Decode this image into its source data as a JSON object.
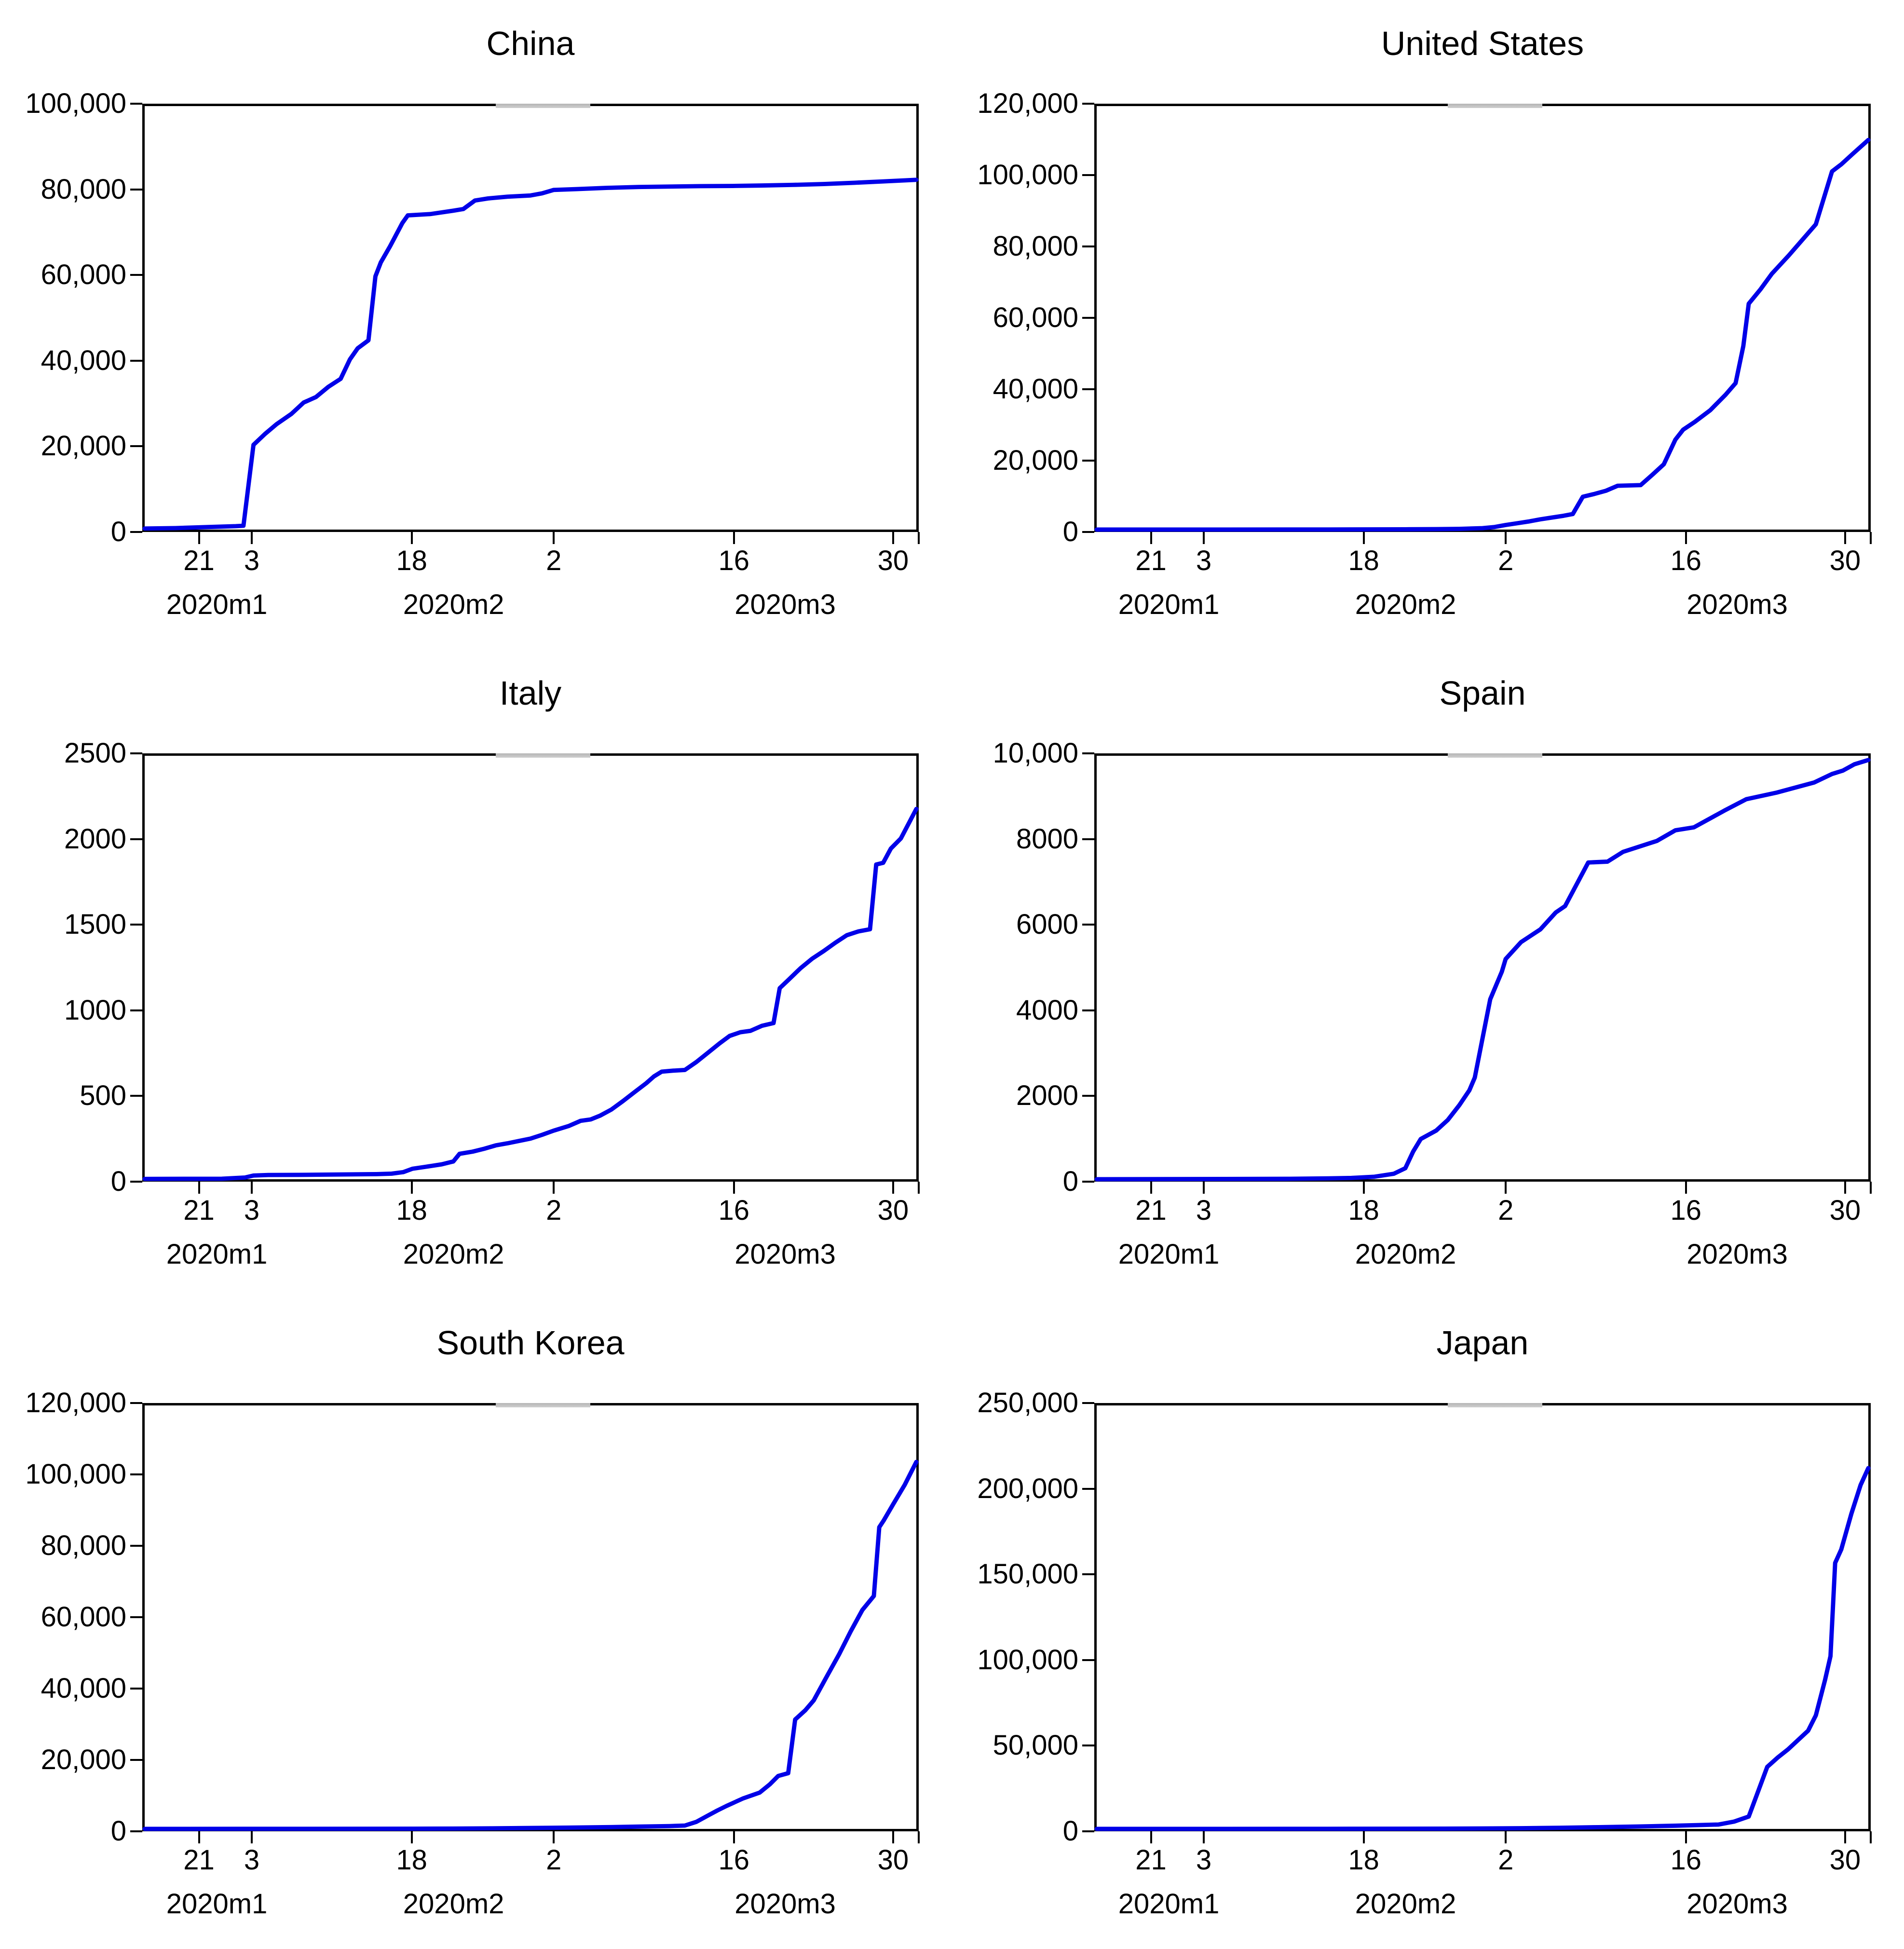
{
  "figure": {
    "background": "#ffffff",
    "line_color": "#0000e8",
    "axis_color": "#000000",
    "artifact_color": "#b5b5b5",
    "grid": false,
    "legend": "none"
  },
  "x_axis": {
    "description": "time axis from mid-January 2020 to early April 2020; tick labels are days of month, f = fraction of plot width",
    "ticks": [
      {
        "f": 0.073,
        "label": "21"
      },
      {
        "f": 0.141,
        "label": "3"
      },
      {
        "f": 0.347,
        "label": "18"
      },
      {
        "f": 0.53,
        "label": "2"
      },
      {
        "f": 0.762,
        "label": "16"
      },
      {
        "f": 0.967,
        "label": "30"
      },
      {
        "f": 1.0,
        "label": ""
      }
    ],
    "month_labels": [
      {
        "f": 0.096,
        "label": "2020m1"
      },
      {
        "f": 0.401,
        "label": "2020m2"
      },
      {
        "f": 0.828,
        "label": "2020m3"
      }
    ]
  },
  "chart_data": [
    {
      "type": "line",
      "title": "China",
      "ylim": [
        0,
        100000
      ],
      "yticks": [
        {
          "v": 0,
          "label": "0"
        },
        {
          "v": 20000,
          "label": "20,000"
        },
        {
          "v": 40000,
          "label": "40,000"
        },
        {
          "v": 60000,
          "label": "60,000"
        },
        {
          "v": 80000,
          "label": "80,000"
        },
        {
          "v": 100000,
          "label": "100,000"
        }
      ],
      "points": [
        [
          0,
          250
        ],
        [
          0.04,
          350
        ],
        [
          0.073,
          550
        ],
        [
          0.1,
          700
        ],
        [
          0.118,
          800
        ],
        [
          0.128,
          900
        ],
        [
          0.141,
          20000
        ],
        [
          0.156,
          22600
        ],
        [
          0.171,
          24900
        ],
        [
          0.19,
          27300
        ],
        [
          0.206,
          30000
        ],
        [
          0.222,
          31300
        ],
        [
          0.238,
          33700
        ],
        [
          0.254,
          35600
        ],
        [
          0.266,
          40200
        ],
        [
          0.276,
          42800
        ],
        [
          0.29,
          44700
        ],
        [
          0.299,
          59800
        ],
        [
          0.306,
          63100
        ],
        [
          0.318,
          66900
        ],
        [
          0.334,
          72400
        ],
        [
          0.341,
          74200
        ],
        [
          0.37,
          74500
        ],
        [
          0.4,
          75300
        ],
        [
          0.413,
          75700
        ],
        [
          0.428,
          77700
        ],
        [
          0.445,
          78200
        ],
        [
          0.47,
          78600
        ],
        [
          0.5,
          78900
        ],
        [
          0.515,
          79400
        ],
        [
          0.53,
          80200
        ],
        [
          0.56,
          80400
        ],
        [
          0.6,
          80700
        ],
        [
          0.64,
          80900
        ],
        [
          0.68,
          81000
        ],
        [
          0.72,
          81100
        ],
        [
          0.762,
          81150
        ],
        [
          0.8,
          81250
        ],
        [
          0.84,
          81400
        ],
        [
          0.88,
          81600
        ],
        [
          0.92,
          81900
        ],
        [
          0.955,
          82200
        ],
        [
          1.0,
          82600
        ]
      ]
    },
    {
      "type": "line",
      "title": "United States",
      "ylim": [
        0,
        120000
      ],
      "yticks": [
        {
          "v": 0,
          "label": "0"
        },
        {
          "v": 20000,
          "label": "20,000"
        },
        {
          "v": 40000,
          "label": "40,000"
        },
        {
          "v": 60000,
          "label": "60,000"
        },
        {
          "v": 80000,
          "label": "80,000"
        },
        {
          "v": 100000,
          "label": "100,000"
        },
        {
          "v": 120000,
          "label": "120,000"
        }
      ],
      "points": [
        [
          0,
          0
        ],
        [
          0.3,
          30
        ],
        [
          0.4,
          80
        ],
        [
          0.44,
          120
        ],
        [
          0.47,
          200
        ],
        [
          0.5,
          400
        ],
        [
          0.515,
          700
        ],
        [
          0.53,
          1300
        ],
        [
          0.545,
          1800
        ],
        [
          0.56,
          2300
        ],
        [
          0.575,
          2900
        ],
        [
          0.59,
          3400
        ],
        [
          0.605,
          3900
        ],
        [
          0.617,
          4400
        ],
        [
          0.63,
          9300
        ],
        [
          0.645,
          10100
        ],
        [
          0.66,
          11000
        ],
        [
          0.675,
          12400
        ],
        [
          0.705,
          12600
        ],
        [
          0.72,
          15500
        ],
        [
          0.735,
          18500
        ],
        [
          0.75,
          25500
        ],
        [
          0.76,
          28300
        ],
        [
          0.775,
          30500
        ],
        [
          0.795,
          33800
        ],
        [
          0.815,
          38200
        ],
        [
          0.828,
          41500
        ],
        [
          0.838,
          52000
        ],
        [
          0.845,
          64000
        ],
        [
          0.86,
          68000
        ],
        [
          0.875,
          72500
        ],
        [
          0.897,
          77700
        ],
        [
          0.932,
          86500
        ],
        [
          0.953,
          101500
        ],
        [
          0.965,
          103500
        ],
        [
          0.98,
          106500
        ],
        [
          1.0,
          110400
        ]
      ]
    },
    {
      "type": "line",
      "title": "Italy",
      "ylim": [
        0,
        2500
      ],
      "yticks": [
        {
          "v": 0,
          "label": "0"
        },
        {
          "v": 500,
          "label": "500"
        },
        {
          "v": 1000,
          "label": "1000"
        },
        {
          "v": 1500,
          "label": "1500"
        },
        {
          "v": 2000,
          "label": "2000"
        },
        {
          "v": 2500,
          "label": "2500"
        }
      ],
      "points": [
        [
          0,
          2
        ],
        [
          0.1,
          3
        ],
        [
          0.13,
          10
        ],
        [
          0.141,
          22
        ],
        [
          0.16,
          25
        ],
        [
          0.2,
          26
        ],
        [
          0.25,
          28
        ],
        [
          0.3,
          30
        ],
        [
          0.32,
          33
        ],
        [
          0.335,
          42
        ],
        [
          0.347,
          62
        ],
        [
          0.365,
          74
        ],
        [
          0.385,
          88
        ],
        [
          0.4,
          105
        ],
        [
          0.408,
          150
        ],
        [
          0.425,
          163
        ],
        [
          0.44,
          180
        ],
        [
          0.455,
          200
        ],
        [
          0.47,
          212
        ],
        [
          0.485,
          226
        ],
        [
          0.5,
          240
        ],
        [
          0.515,
          262
        ],
        [
          0.53,
          287
        ],
        [
          0.55,
          315
        ],
        [
          0.565,
          345
        ],
        [
          0.578,
          353
        ],
        [
          0.59,
          375
        ],
        [
          0.605,
          412
        ],
        [
          0.62,
          462
        ],
        [
          0.635,
          515
        ],
        [
          0.65,
          567
        ],
        [
          0.66,
          607
        ],
        [
          0.67,
          635
        ],
        [
          0.685,
          641
        ],
        [
          0.7,
          645
        ],
        [
          0.715,
          692
        ],
        [
          0.73,
          747
        ],
        [
          0.745,
          802
        ],
        [
          0.758,
          846
        ],
        [
          0.772,
          868
        ],
        [
          0.785,
          876
        ],
        [
          0.8,
          906
        ],
        [
          0.815,
          922
        ],
        [
          0.823,
          1128
        ],
        [
          0.835,
          1180
        ],
        [
          0.85,
          1246
        ],
        [
          0.865,
          1302
        ],
        [
          0.88,
          1347
        ],
        [
          0.895,
          1396
        ],
        [
          0.91,
          1441
        ],
        [
          0.925,
          1463
        ],
        [
          0.94,
          1476
        ],
        [
          0.948,
          1858
        ],
        [
          0.957,
          1868
        ],
        [
          0.967,
          1952
        ],
        [
          0.98,
          2012
        ],
        [
          1.0,
          2186
        ]
      ]
    },
    {
      "type": "line",
      "title": "Spain",
      "ylim": [
        0,
        10000
      ],
      "yticks": [
        {
          "v": 0,
          "label": "0"
        },
        {
          "v": 2000,
          "label": "2000"
        },
        {
          "v": 4000,
          "label": "4000"
        },
        {
          "v": 6000,
          "label": "6000"
        },
        {
          "v": 8000,
          "label": "8000"
        },
        {
          "v": 10000,
          "label": "10,000"
        }
      ],
      "points": [
        [
          0,
          0
        ],
        [
          0.25,
          10
        ],
        [
          0.3,
          20
        ],
        [
          0.33,
          30
        ],
        [
          0.36,
          60
        ],
        [
          0.385,
          130
        ],
        [
          0.4,
          260
        ],
        [
          0.41,
          650
        ],
        [
          0.42,
          950
        ],
        [
          0.44,
          1150
        ],
        [
          0.455,
          1400
        ],
        [
          0.47,
          1750
        ],
        [
          0.483,
          2100
        ],
        [
          0.49,
          2400
        ],
        [
          0.51,
          4250
        ],
        [
          0.525,
          4900
        ],
        [
          0.53,
          5200
        ],
        [
          0.55,
          5600
        ],
        [
          0.575,
          5900
        ],
        [
          0.595,
          6300
        ],
        [
          0.607,
          6450
        ],
        [
          0.637,
          7480
        ],
        [
          0.662,
          7500
        ],
        [
          0.682,
          7730
        ],
        [
          0.726,
          7990
        ],
        [
          0.75,
          8240
        ],
        [
          0.774,
          8310
        ],
        [
          0.813,
          8700
        ],
        [
          0.842,
          8975
        ],
        [
          0.881,
          9130
        ],
        [
          0.93,
          9370
        ],
        [
          0.953,
          9570
        ],
        [
          0.967,
          9650
        ],
        [
          0.982,
          9800
        ],
        [
          1.0,
          9900
        ]
      ]
    },
    {
      "type": "line",
      "title": "South Korea",
      "ylim": [
        0,
        120000
      ],
      "yticks": [
        {
          "v": 0,
          "label": "0"
        },
        {
          "v": 20000,
          "label": "20,000"
        },
        {
          "v": 40000,
          "label": "40,000"
        },
        {
          "v": 60000,
          "label": "60,000"
        },
        {
          "v": 80000,
          "label": "80,000"
        },
        {
          "v": 100000,
          "label": "100,000"
        },
        {
          "v": 120000,
          "label": "120,000"
        }
      ],
      "points": [
        [
          0,
          0
        ],
        [
          0.35,
          60
        ],
        [
          0.4,
          100
        ],
        [
          0.45,
          160
        ],
        [
          0.5,
          260
        ],
        [
          0.55,
          360
        ],
        [
          0.6,
          500
        ],
        [
          0.64,
          650
        ],
        [
          0.68,
          800
        ],
        [
          0.7,
          950
        ],
        [
          0.715,
          2000
        ],
        [
          0.73,
          3800
        ],
        [
          0.742,
          5200
        ],
        [
          0.754,
          6500
        ],
        [
          0.775,
          8600
        ],
        [
          0.797,
          10300
        ],
        [
          0.81,
          12600
        ],
        [
          0.821,
          15000
        ],
        [
          0.834,
          15800
        ],
        [
          0.843,
          31000
        ],
        [
          0.856,
          33600
        ],
        [
          0.867,
          36400
        ],
        [
          0.883,
          42800
        ],
        [
          0.9,
          49500
        ],
        [
          0.915,
          56000
        ],
        [
          0.93,
          62000
        ],
        [
          0.945,
          66000
        ],
        [
          0.952,
          85500
        ],
        [
          0.958,
          87500
        ],
        [
          0.97,
          92000
        ],
        [
          0.985,
          97500
        ],
        [
          1.0,
          104000
        ]
      ]
    },
    {
      "type": "line",
      "title": "Japan",
      "ylim": [
        0,
        250000
      ],
      "yticks": [
        {
          "v": 0,
          "label": "0"
        },
        {
          "v": 50000,
          "label": "50,000"
        },
        {
          "v": 100000,
          "label": "100,000"
        },
        {
          "v": 150000,
          "label": "150,000"
        },
        {
          "v": 200000,
          "label": "200,000"
        },
        {
          "v": 250000,
          "label": "250,000"
        }
      ],
      "points": [
        [
          0,
          0
        ],
        [
          0.3,
          50
        ],
        [
          0.45,
          150
        ],
        [
          0.5,
          250
        ],
        [
          0.55,
          400
        ],
        [
          0.6,
          650
        ],
        [
          0.65,
          1000
        ],
        [
          0.7,
          1400
        ],
        [
          0.75,
          1900
        ],
        [
          0.78,
          2250
        ],
        [
          0.806,
          2600
        ],
        [
          0.826,
          4300
        ],
        [
          0.845,
          7300
        ],
        [
          0.869,
          36600
        ],
        [
          0.883,
          42300
        ],
        [
          0.896,
          47000
        ],
        [
          0.922,
          58000
        ],
        [
          0.932,
          67000
        ],
        [
          0.944,
          88000
        ],
        [
          0.951,
          102000
        ],
        [
          0.957,
          157000
        ],
        [
          0.965,
          165000
        ],
        [
          0.978,
          186000
        ],
        [
          0.99,
          203000
        ],
        [
          1.0,
          213000
        ]
      ]
    }
  ]
}
